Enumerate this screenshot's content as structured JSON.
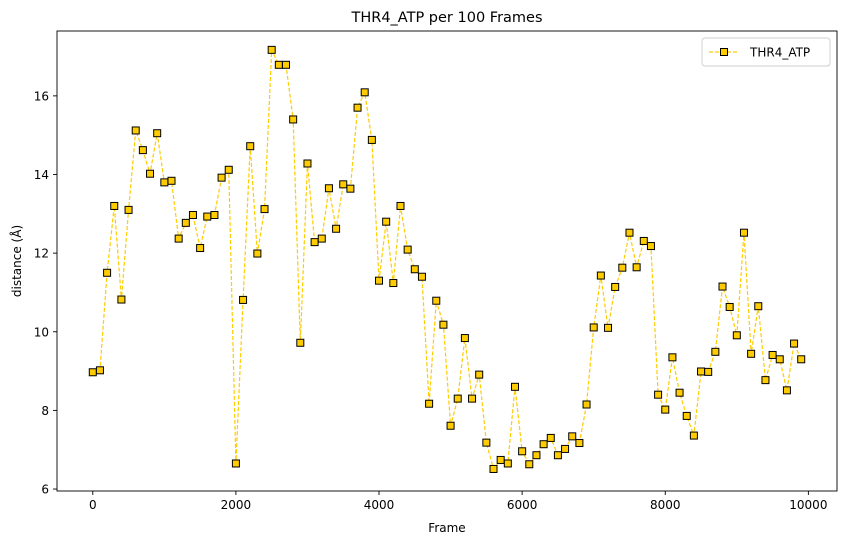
{
  "chart_data": {
    "type": "line",
    "title": "THR4_ATP per 100 Frames",
    "xlabel": "Frame",
    "ylabel": "distance (Å)",
    "xlim": [
      -500,
      10400
    ],
    "ylim": [
      5.95,
      17.65
    ],
    "xticks": [
      0,
      2000,
      4000,
      6000,
      8000,
      10000
    ],
    "yticks": [
      6,
      8,
      10,
      12,
      14,
      16
    ],
    "grid": false,
    "legend_position": "top-right",
    "series": [
      {
        "name": "THR4_ATP",
        "color": "#ffcc00",
        "marker_edge": "#000000",
        "line_style": "dashed",
        "marker": "square",
        "x": [
          0,
          100,
          200,
          300,
          400,
          500,
          600,
          700,
          800,
          900,
          1000,
          1100,
          1200,
          1300,
          1400,
          1500,
          1600,
          1700,
          1800,
          1900,
          2000,
          2100,
          2200,
          2300,
          2400,
          2500,
          2600,
          2700,
          2800,
          2900,
          3000,
          3100,
          3200,
          3300,
          3400,
          3500,
          3600,
          3700,
          3800,
          3900,
          4000,
          4100,
          4200,
          4300,
          4400,
          4500,
          4600,
          4700,
          4800,
          4900,
          5000,
          5100,
          5200,
          5300,
          5400,
          5500,
          5600,
          5700,
          5800,
          5900,
          6000,
          6100,
          6200,
          6300,
          6400,
          6500,
          6600,
          6700,
          6800,
          6900,
          7000,
          7100,
          7200,
          7300,
          7400,
          7500,
          7600,
          7700,
          7800,
          7900,
          8000,
          8100,
          8200,
          8300,
          8400,
          8500,
          8600,
          8700,
          8800,
          8900,
          9000,
          9100,
          9200,
          9300,
          9400,
          9500,
          9600,
          9700,
          9800,
          9900
        ],
        "values": [
          8.97,
          9.02,
          11.5,
          13.2,
          10.82,
          13.1,
          15.12,
          14.62,
          14.02,
          15.05,
          13.8,
          13.84,
          12.37,
          12.77,
          12.97,
          12.13,
          12.93,
          12.97,
          13.92,
          14.12,
          6.65,
          10.81,
          14.72,
          11.99,
          13.12,
          17.17,
          16.79,
          16.79,
          15.4,
          9.72,
          14.28,
          12.28,
          12.37,
          13.65,
          12.62,
          13.75,
          13.64,
          15.7,
          16.09,
          14.88,
          11.3,
          12.8,
          11.24,
          13.2,
          12.09,
          11.59,
          11.4,
          8.17,
          10.79,
          10.18,
          7.61,
          8.3,
          9.84,
          8.3,
          8.91,
          7.18,
          6.51,
          6.74,
          6.65,
          8.6,
          6.96,
          6.63,
          6.86,
          7.14,
          7.3,
          6.86,
          7.02,
          7.34,
          7.17,
          8.15,
          10.11,
          11.43,
          10.1,
          11.14,
          11.63,
          12.52,
          11.64,
          12.31,
          12.18,
          8.4,
          8.02,
          9.35,
          8.45,
          7.86,
          7.36,
          8.99,
          8.98,
          9.49,
          11.15,
          10.63,
          9.91,
          12.52,
          9.44,
          10.65,
          8.77,
          9.41,
          9.3,
          8.51,
          9.7,
          9.3
        ]
      }
    ]
  }
}
